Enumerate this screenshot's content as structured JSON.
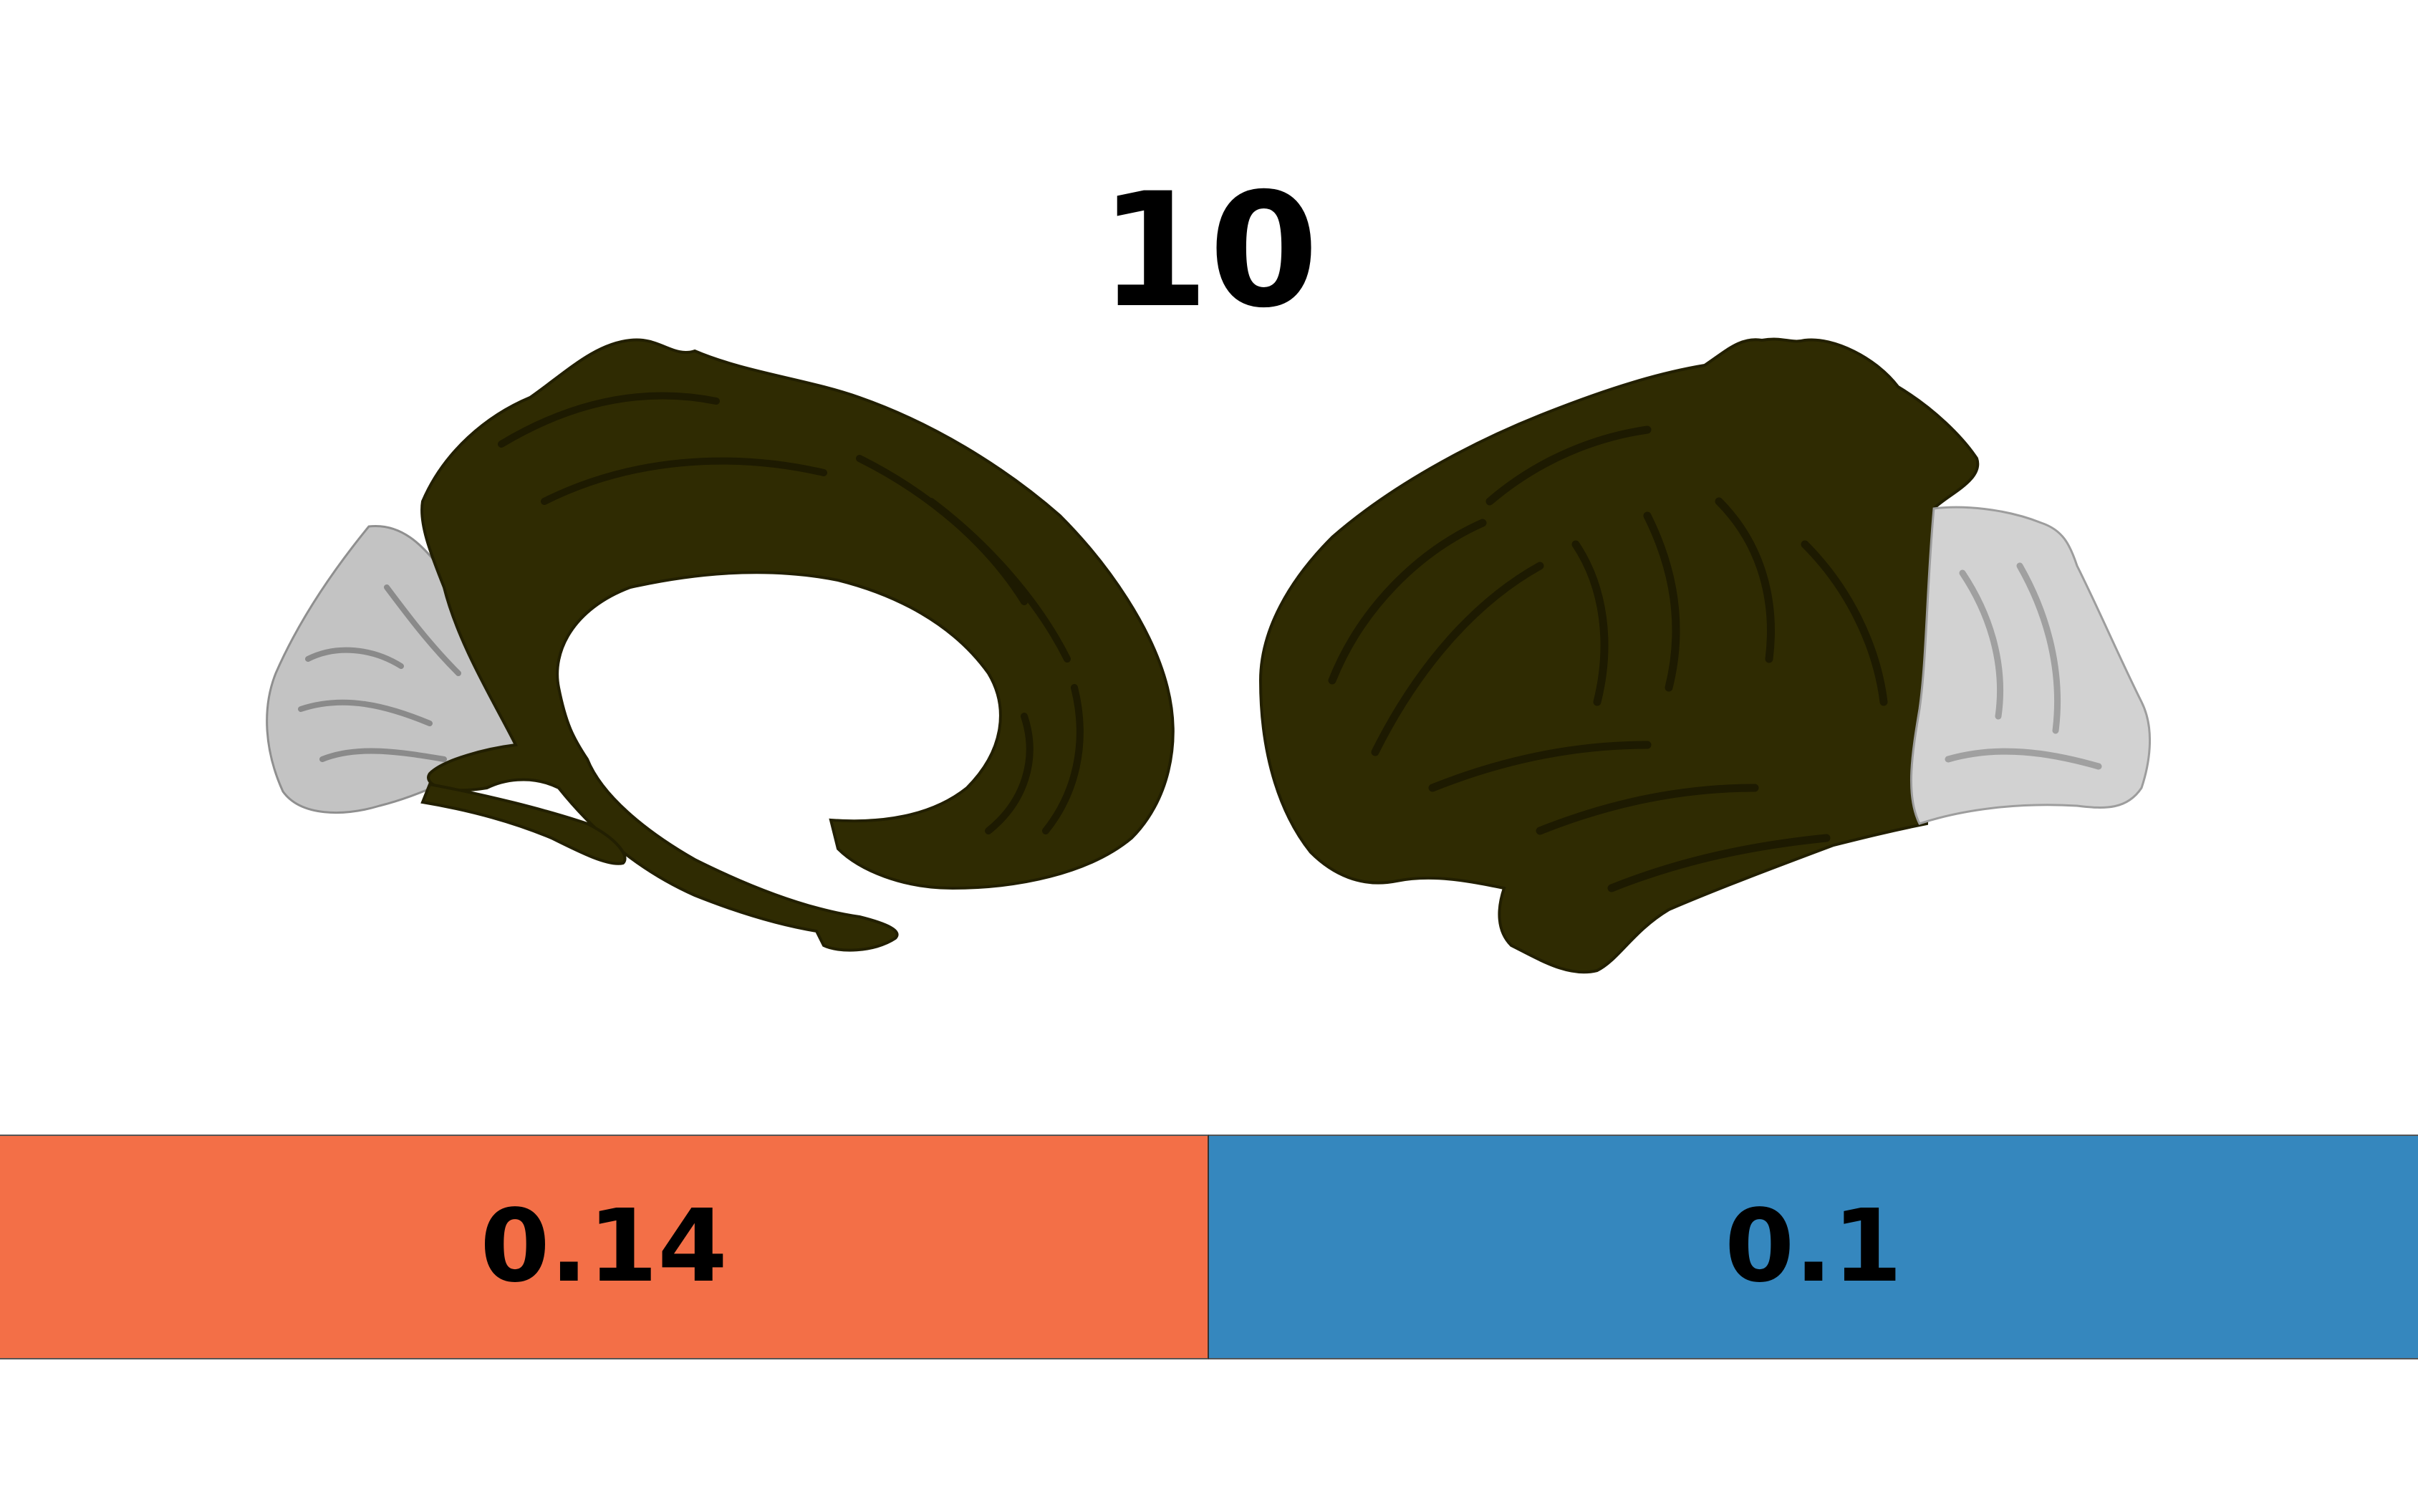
{
  "title": "10",
  "bars": [
    {
      "label": "0.14",
      "color": "#f36f47"
    },
    {
      "label": "0.1",
      "color": "#3587be"
    }
  ],
  "colors": {
    "cortex_region": "#2f2b02",
    "cortex_region_shade": "#1f1c01",
    "unlabeled_cortex": "#c8c8c8",
    "unlabeled_cortex_shade": "#9a9a9a"
  }
}
